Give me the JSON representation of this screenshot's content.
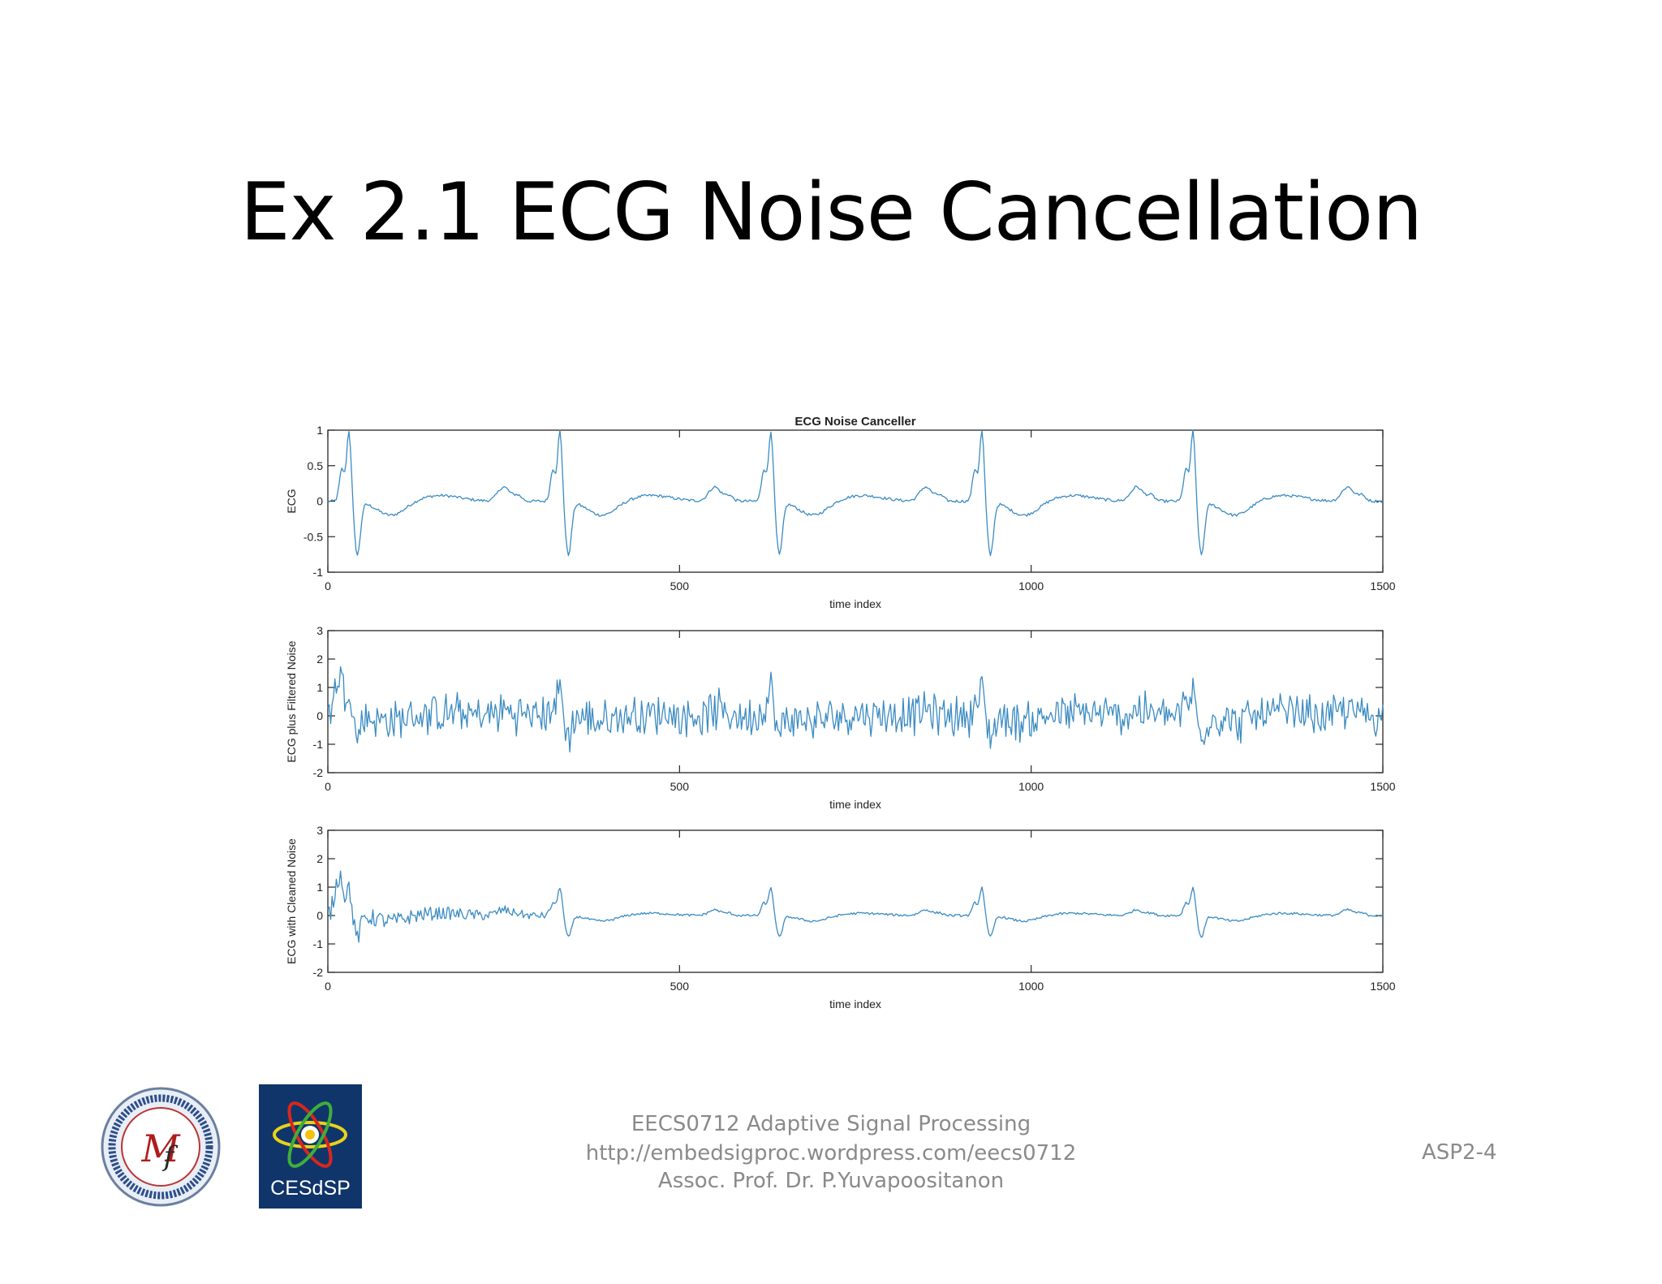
{
  "slide": {
    "title": "Ex 2.1  ECG Noise Cancellation"
  },
  "footer": {
    "course": "EECS0712 Adaptive Signal Processing",
    "url": "http://embedsigproc.wordpress.com/eecs0712",
    "author": "Assoc. Prof. Dr. P.Yuvapoositanon",
    "page": "ASP2-4"
  },
  "logos": {
    "right_text": "CESdSP"
  },
  "colors": {
    "line": "#3b8bc2",
    "axis": "#262626",
    "footer_text": "#8a8a8a",
    "logo_bg": "#10356b"
  },
  "chart_data": [
    {
      "type": "line",
      "title": "ECG Noise Canceller",
      "xlabel": "time index",
      "ylabel": "ECG",
      "xlim": [
        0,
        1500
      ],
      "ylim": [
        -1,
        1
      ],
      "xticks": [
        0,
        500,
        1000,
        1500
      ],
      "yticks": [
        -1,
        -0.5,
        0,
        0.5,
        1
      ],
      "period": 300,
      "beat": {
        "pre_bump": 0.55,
        "r_peak": 1.0,
        "s_trough": -0.75,
        "baseline_min": -0.2,
        "t_wave": 0.2
      },
      "noise_amplitude": 0.02
    },
    {
      "type": "line",
      "title": "",
      "xlabel": "time index",
      "ylabel": "ECG plus Filtered Noise",
      "xlim": [
        0,
        1500
      ],
      "ylim": [
        -2,
        3
      ],
      "xticks": [
        0,
        500,
        1000,
        1500
      ],
      "yticks": [
        -2,
        -1,
        0,
        1,
        2,
        3
      ],
      "period": 300,
      "noise_amplitude": 0.6,
      "initial_peak": 2.0
    },
    {
      "type": "line",
      "title": "",
      "xlabel": "time index",
      "ylabel": "ECG with Cleaned Noise",
      "xlim": [
        0,
        1500
      ],
      "ylim": [
        -2,
        3
      ],
      "xticks": [
        0,
        500,
        1000,
        1500
      ],
      "yticks": [
        -2,
        -1,
        0,
        1,
        2,
        3
      ],
      "period": 300,
      "noise_amplitude": 0.35,
      "convergence_index": 320,
      "initial_peak": 2.0
    }
  ]
}
